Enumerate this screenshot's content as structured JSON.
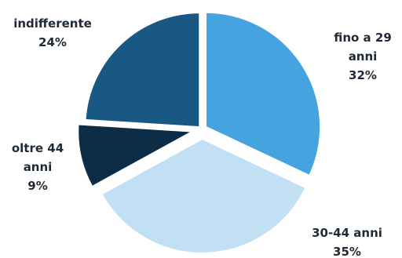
{
  "chart_data": {
    "type": "pie",
    "exploded": true,
    "start_angle_deg": 0,
    "direction": "clockwise",
    "slices": [
      {
        "key": "fino-a-29-anni",
        "label_lines": [
          "fino a 29",
          "anni"
        ],
        "percent_label": "32%",
        "value": 32,
        "color": "#45a3e0"
      },
      {
        "key": "30-44-anni",
        "label_lines": [
          "30-44 anni"
        ],
        "percent_label": "35%",
        "value": 35,
        "color": "#c2e0f4"
      },
      {
        "key": "oltre-44-anni",
        "label_lines": [
          "oltre 44",
          "anni"
        ],
        "percent_label": "9%",
        "value": 9,
        "color": "#0d2d47"
      },
      {
        "key": "indifferente",
        "label_lines": [
          "indifferente"
        ],
        "percent_label": "24%",
        "value": 24,
        "color": "#185883"
      }
    ]
  }
}
